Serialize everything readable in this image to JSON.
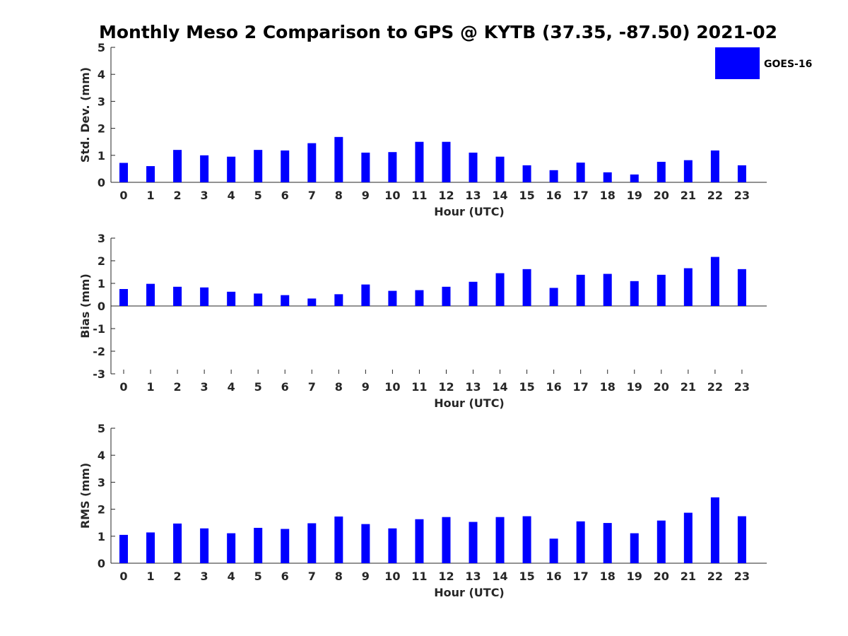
{
  "chart_data": {
    "type": "bar",
    "title": "Monthly Meso 2 Comparison to GPS @ KYTB (37.35, -87.50) 2021-02",
    "legend": {
      "entries": [
        "GOES-16"
      ],
      "placement": "top-right"
    },
    "bar_color": "#0000ff",
    "categories": [
      "0",
      "1",
      "2",
      "3",
      "4",
      "5",
      "6",
      "7",
      "8",
      "9",
      "10",
      "11",
      "12",
      "13",
      "14",
      "15",
      "16",
      "17",
      "18",
      "19",
      "20",
      "21",
      "22",
      "23"
    ],
    "panels": [
      {
        "name": "std-dev",
        "ylabel": "Std. Dev. (mm)",
        "xlabel": "Hour (UTC)",
        "ylim": [
          0,
          5
        ],
        "yticks": [
          "0",
          "1",
          "2",
          "3",
          "4",
          "5"
        ],
        "series": [
          {
            "name": "GOES-16",
            "values": [
              0.72,
              0.6,
              1.2,
              1.0,
              0.95,
              1.2,
              1.18,
              1.45,
              1.68,
              1.1,
              1.12,
              1.5,
              1.5,
              1.1,
              0.95,
              0.63,
              0.45,
              0.73,
              0.37,
              0.29,
              0.76,
              0.82,
              1.18,
              0.63
            ]
          }
        ]
      },
      {
        "name": "bias",
        "ylabel": "Bias (mm)",
        "xlabel": "Hour (UTC)",
        "ylim": [
          -3,
          3
        ],
        "yticks": [
          "-3",
          "-2",
          "-1",
          "0",
          "1",
          "2",
          "3"
        ],
        "series": [
          {
            "name": "GOES-16",
            "values": [
              0.75,
              0.98,
              0.85,
              0.82,
              0.63,
              0.55,
              0.48,
              0.33,
              0.52,
              0.95,
              0.67,
              0.7,
              0.85,
              1.07,
              1.45,
              1.63,
              0.8,
              1.38,
              1.42,
              1.1,
              1.38,
              1.67,
              2.17,
              1.63
            ]
          }
        ]
      },
      {
        "name": "rms",
        "ylabel": "RMS (mm)",
        "xlabel": "Hour (UTC)",
        "ylim": [
          0,
          5
        ],
        "yticks": [
          "0",
          "1",
          "2",
          "3",
          "4",
          "5"
        ],
        "series": [
          {
            "name": "GOES-16",
            "values": [
              1.05,
              1.14,
              1.47,
              1.29,
              1.11,
              1.31,
              1.27,
              1.48,
              1.73,
              1.45,
              1.29,
              1.63,
              1.71,
              1.53,
              1.71,
              1.74,
              0.91,
              1.55,
              1.49,
              1.11,
              1.58,
              1.87,
              2.44,
              1.74
            ]
          }
        ]
      }
    ]
  }
}
